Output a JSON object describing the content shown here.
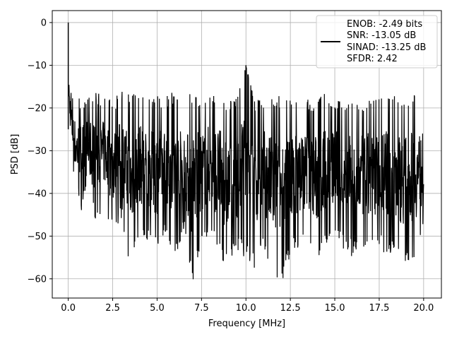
{
  "chart_data": {
    "type": "line",
    "title": "",
    "xlabel": "Frequency [MHz]",
    "ylabel": "PSD [dB]",
    "xlim": [
      -0.9,
      21.0
    ],
    "ylim": [
      -64.5,
      2.8
    ],
    "xticks": [
      0.0,
      2.5,
      5.0,
      7.5,
      10.0,
      12.5,
      15.0,
      17.5,
      20.0
    ],
    "xtick_labels": [
      "0.0",
      "2.5",
      "5.0",
      "7.5",
      "10.0",
      "12.5",
      "15.0",
      "17.5",
      "20.0"
    ],
    "yticks": [
      0,
      -10,
      -20,
      -30,
      -40,
      -50,
      -60
    ],
    "ytick_labels": [
      "0",
      "−10",
      "−20",
      "−30",
      "−40",
      "−50",
      "−60"
    ],
    "grid": true,
    "legend_position": "top-right",
    "line_color": "#000000",
    "series": [
      {
        "x": [
          0.0,
          0.02,
          0.05,
          0.08,
          0.12,
          0.16,
          0.2,
          0.25,
          0.3,
          0.35,
          0.4,
          0.5,
          0.75,
          1.0,
          1.5,
          2.0,
          2.5,
          3.0,
          3.5,
          4.0,
          4.5,
          5.0,
          5.5,
          6.0,
          6.5,
          7.0,
          7.5,
          8.0,
          8.5,
          9.0,
          9.5,
          10.0,
          10.5,
          11.0,
          11.5,
          12.0,
          12.5,
          13.0,
          13.5,
          14.0,
          14.5,
          15.0,
          15.5,
          16.0,
          16.5,
          17.0,
          17.5,
          18.0,
          18.5,
          19.0,
          19.5,
          20.0
        ],
        "upper": [
          0,
          -8,
          -10,
          -12,
          -14,
          -15,
          -16,
          -17,
          -18,
          -17,
          -18,
          -18,
          -17,
          -17,
          -16,
          -17,
          -18,
          -16,
          -17,
          -16,
          -18,
          -17,
          -17,
          -16,
          -18,
          -16,
          -17,
          -16,
          -16,
          -18,
          -17,
          -10,
          -18,
          -17,
          -17,
          -17,
          -17,
          -17,
          -18,
          -18,
          -16,
          -18,
          -18,
          -17,
          -18,
          -17,
          -16,
          -17,
          -17,
          -18,
          -16,
          -19
        ],
        "lower": [
          -20,
          -22,
          -24,
          -26,
          -28,
          -30,
          -32,
          -34,
          -36,
          -38,
          -40,
          -41,
          -44,
          -42,
          -46,
          -44,
          -49,
          -46,
          -59,
          -50,
          -52,
          -53,
          -50,
          -55,
          -49,
          -61,
          -52,
          -50,
          -55,
          -58,
          -54,
          -55,
          -58,
          -53,
          -60,
          -61,
          -55,
          -53,
          -51,
          -56,
          -52,
          -50,
          -53,
          -55,
          -54,
          -55,
          -53,
          -55,
          -55,
          -56,
          -55,
          -50
        ]
      }
    ],
    "spikes": [
      {
        "x": 0.0,
        "y": 0
      },
      {
        "x": 10.0,
        "y": -10
      }
    ],
    "legend": {
      "enob": "ENOB: -2.49 bits",
      "snr": "SNR: -13.05 dB",
      "sinad": "SINAD: -13.25 dB",
      "sfdr": "SFDR: 2.42"
    }
  }
}
